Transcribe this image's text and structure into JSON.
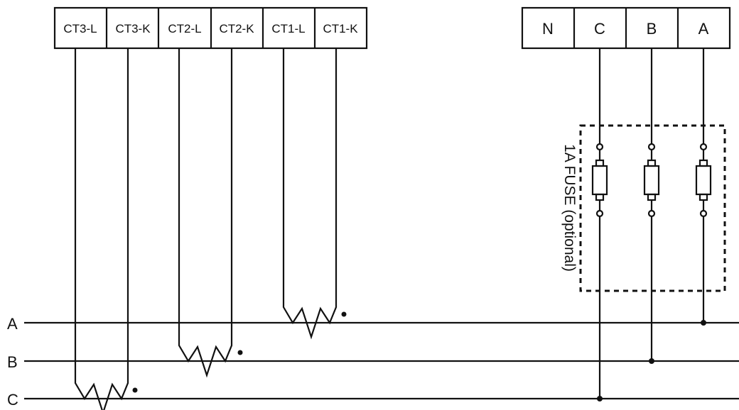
{
  "ct_terminals": [
    "CT3-L",
    "CT3-K",
    "CT2-L",
    "CT2-K",
    "CT1-L",
    "CT1-K"
  ],
  "voltage_terminals": [
    "N",
    "C",
    "B",
    "A"
  ],
  "bus_lines": [
    "A",
    "B",
    "C"
  ],
  "fuse_label": "1A FUSE (optional)",
  "colors": {
    "ink": "#111111",
    "background": "#ffffff"
  }
}
